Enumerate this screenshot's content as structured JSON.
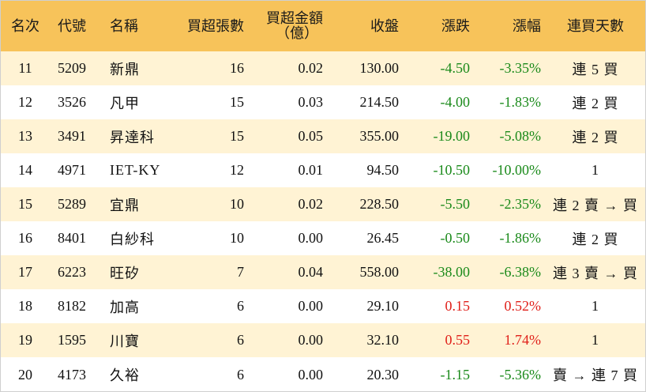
{
  "headers": {
    "rank": "名次",
    "code": "代號",
    "name": "名稱",
    "lots": "買超張數",
    "amount_line1": "買超金額",
    "amount_line2": "（億）",
    "close": "收盤",
    "change": "漲跌",
    "pct": "漲幅",
    "days": "連買天數"
  },
  "colors": {
    "header_bg": "#f7c35a",
    "odd_row_bg": "#fff3d4",
    "even_row_bg": "#ffffff",
    "down": "#1a8a1a",
    "up": "#e0201a"
  },
  "rows": [
    {
      "rank": "11",
      "code": "5209",
      "name": "新鼎",
      "lots": "16",
      "amount": "0.02",
      "close": "130.00",
      "change": "-4.50",
      "pct": "-3.35%",
      "days": "連 5 買",
      "dir": "down"
    },
    {
      "rank": "12",
      "code": "3526",
      "name": "凡甲",
      "lots": "15",
      "amount": "0.03",
      "close": "214.50",
      "change": "-4.00",
      "pct": "-1.83%",
      "days": "連 2 買",
      "dir": "down"
    },
    {
      "rank": "13",
      "code": "3491",
      "name": "昇達科",
      "lots": "15",
      "amount": "0.05",
      "close": "355.00",
      "change": "-19.00",
      "pct": "-5.08%",
      "days": "連 2 買",
      "dir": "down"
    },
    {
      "rank": "14",
      "code": "4971",
      "name": "IET-KY",
      "lots": "12",
      "amount": "0.01",
      "close": "94.50",
      "change": "-10.50",
      "pct": "-10.00%",
      "days": "1",
      "dir": "down"
    },
    {
      "rank": "15",
      "code": "5289",
      "name": "宜鼎",
      "lots": "10",
      "amount": "0.02",
      "close": "228.50",
      "change": "-5.50",
      "pct": "-2.35%",
      "days": "連 2 賣 → 買",
      "dir": "down"
    },
    {
      "rank": "16",
      "code": "8401",
      "name": "白紗科",
      "lots": "10",
      "amount": "0.00",
      "close": "26.45",
      "change": "-0.50",
      "pct": "-1.86%",
      "days": "連 2 買",
      "dir": "down"
    },
    {
      "rank": "17",
      "code": "6223",
      "name": "旺矽",
      "lots": "7",
      "amount": "0.04",
      "close": "558.00",
      "change": "-38.00",
      "pct": "-6.38%",
      "days": "連 3 賣 → 買",
      "dir": "down"
    },
    {
      "rank": "18",
      "code": "8182",
      "name": "加高",
      "lots": "6",
      "amount": "0.00",
      "close": "29.10",
      "change": "0.15",
      "pct": "0.52%",
      "days": "1",
      "dir": "up"
    },
    {
      "rank": "19",
      "code": "1595",
      "name": "川寶",
      "lots": "6",
      "amount": "0.00",
      "close": "32.10",
      "change": "0.55",
      "pct": "1.74%",
      "days": "1",
      "dir": "up"
    },
    {
      "rank": "20",
      "code": "4173",
      "name": "久裕",
      "lots": "6",
      "amount": "0.00",
      "close": "20.30",
      "change": "-1.15",
      "pct": "-5.36%",
      "days": "賣 → 連 7 買",
      "dir": "down"
    }
  ]
}
